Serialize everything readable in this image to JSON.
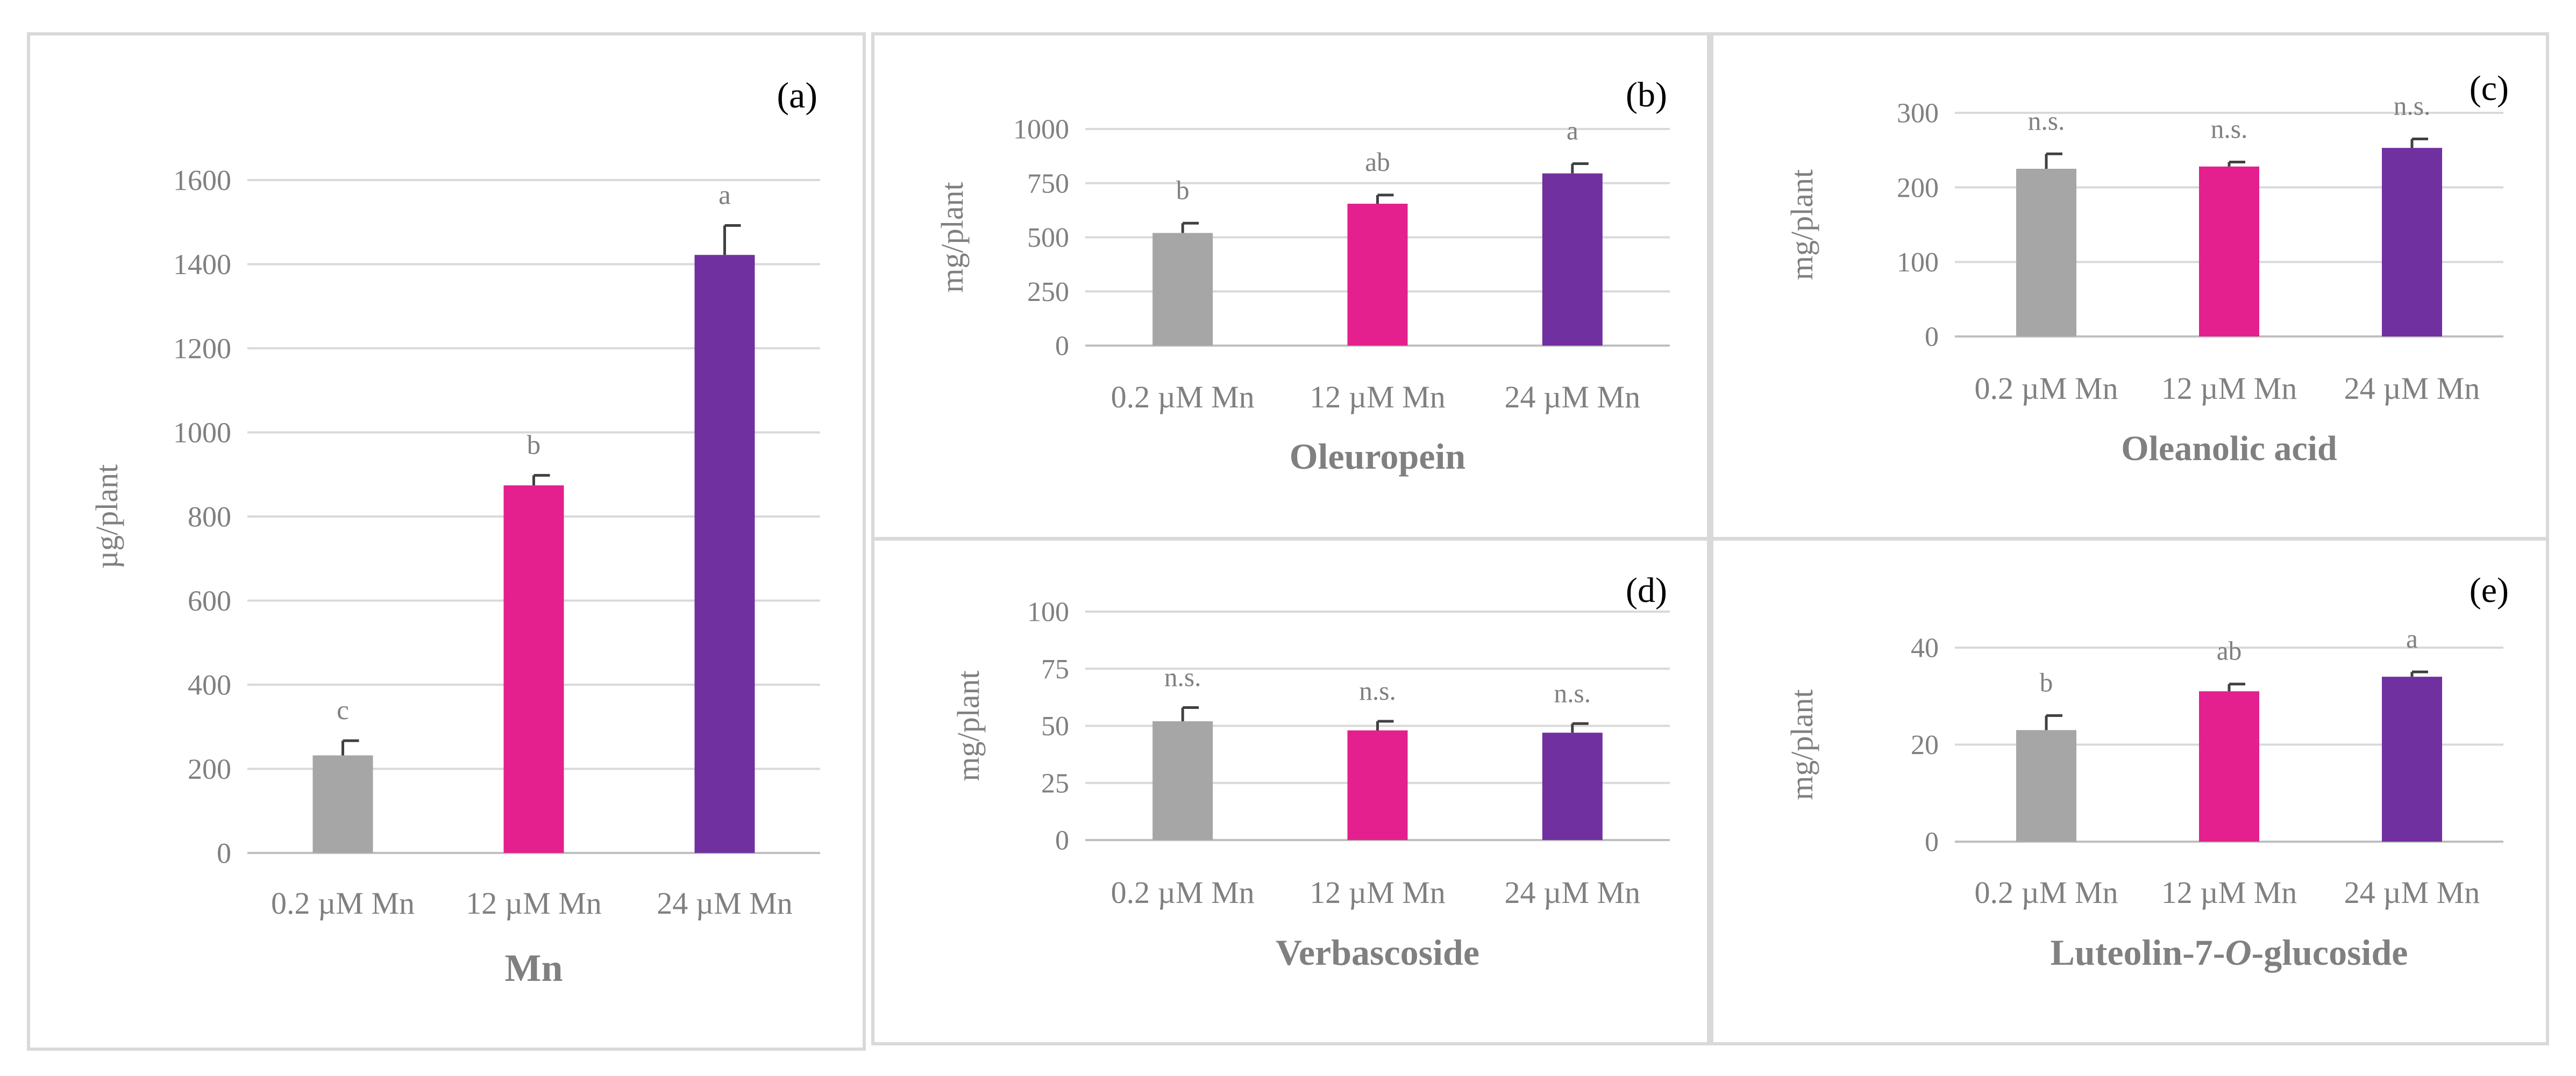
{
  "chart_data": [
    {
      "id": "a",
      "type": "bar",
      "panel_label": "(a)",
      "title": "Mn",
      "title_parts": [
        {
          "text": "Mn",
          "italic": false
        }
      ],
      "ylabel": "µg/plant",
      "xlabel": "",
      "categories": [
        "0.2 µM Mn",
        "12 µM Mn",
        "24 µM Mn"
      ],
      "values": [
        232,
        874,
        1422
      ],
      "errors": [
        35,
        24,
        70
      ],
      "letters": [
        "c",
        "b",
        "a"
      ],
      "ylim": [
        0,
        1600
      ],
      "yticks": [
        0,
        200,
        400,
        600,
        800,
        1000,
        1200,
        1400,
        1600
      ],
      "ytick_labels": [
        "0",
        "200",
        "400",
        "600",
        "800",
        "1000",
        "1200",
        "1400",
        "1600"
      ],
      "grid": true
    },
    {
      "id": "b",
      "type": "bar",
      "panel_label": "(b)",
      "title": "Oleuropein",
      "title_parts": [
        {
          "text": "Oleuropein",
          "italic": false
        }
      ],
      "ylabel": "mg/plant",
      "xlabel": "",
      "categories": [
        "0.2 µM Mn",
        "12 µM Mn",
        "24 µM Mn"
      ],
      "values": [
        520,
        655,
        795
      ],
      "errors": [
        45,
        40,
        45
      ],
      "letters": [
        "b",
        "ab",
        "a"
      ],
      "ylim": [
        0,
        1000
      ],
      "yticks": [
        0,
        250,
        500,
        750,
        1000
      ],
      "ytick_labels": [
        "0",
        "250",
        "500",
        "750",
        "1000"
      ],
      "grid": true
    },
    {
      "id": "c",
      "type": "bar",
      "panel_label": "(c)",
      "title": "Oleanolic acid",
      "title_parts": [
        {
          "text": "Oleanolic acid",
          "italic": false
        }
      ],
      "ylabel": "mg/plant",
      "xlabel": "",
      "categories": [
        "0.2 µM Mn",
        "12 µM Mn",
        "24 µM Mn"
      ],
      "values": [
        225,
        228,
        253
      ],
      "errors": [
        20,
        6,
        12
      ],
      "letters": [
        "n.s.",
        "n.s.",
        "n.s."
      ],
      "ylim": [
        0,
        300
      ],
      "yticks": [
        0,
        100,
        200,
        300
      ],
      "ytick_labels": [
        "0",
        "100",
        "200",
        "300"
      ],
      "grid": true
    },
    {
      "id": "d",
      "type": "bar",
      "panel_label": "(d)",
      "title": "Verbascoside",
      "title_parts": [
        {
          "text": "Verbascoside",
          "italic": false
        }
      ],
      "ylabel": "mg/plant",
      "xlabel": "",
      "categories": [
        "0.2 µM Mn",
        "12 µM Mn",
        "24 µM Mn"
      ],
      "values": [
        52,
        48,
        47
      ],
      "errors": [
        6,
        4,
        4
      ],
      "letters": [
        "n.s.",
        "n.s.",
        "n.s."
      ],
      "ylim": [
        0,
        100
      ],
      "yticks": [
        0,
        25,
        50,
        75,
        100
      ],
      "ytick_labels": [
        "0",
        "25",
        "50",
        "75",
        "100"
      ],
      "grid": true
    },
    {
      "id": "e",
      "type": "bar",
      "panel_label": "(e)",
      "title": "Luteolin-7-O-glucoside",
      "title_parts": [
        {
          "text": "Luteolin-7-",
          "italic": false
        },
        {
          "text": "O",
          "italic": true
        },
        {
          "text": "-glucoside",
          "italic": false
        }
      ],
      "ylabel": "mg/plant",
      "xlabel": "",
      "categories": [
        "0.2 µM Mn",
        "12 µM Mn",
        "24 µM Mn"
      ],
      "values": [
        23,
        31,
        34
      ],
      "errors": [
        3,
        1.5,
        1
      ],
      "letters": [
        "b",
        "ab",
        "a"
      ],
      "ylim": [
        0,
        40
      ],
      "yticks": [
        0,
        20,
        40
      ],
      "ytick_labels": [
        "0",
        "20",
        "40"
      ],
      "grid": true
    }
  ],
  "colors": {
    "bars": [
      "#a6a6a6",
      "#e3208e",
      "#7030a0"
    ],
    "error_bar": "#404040",
    "text": "#808080",
    "grid": "#d9d9d9",
    "axis": "#bfbfbf",
    "panel_border": "#d9d9d9"
  }
}
